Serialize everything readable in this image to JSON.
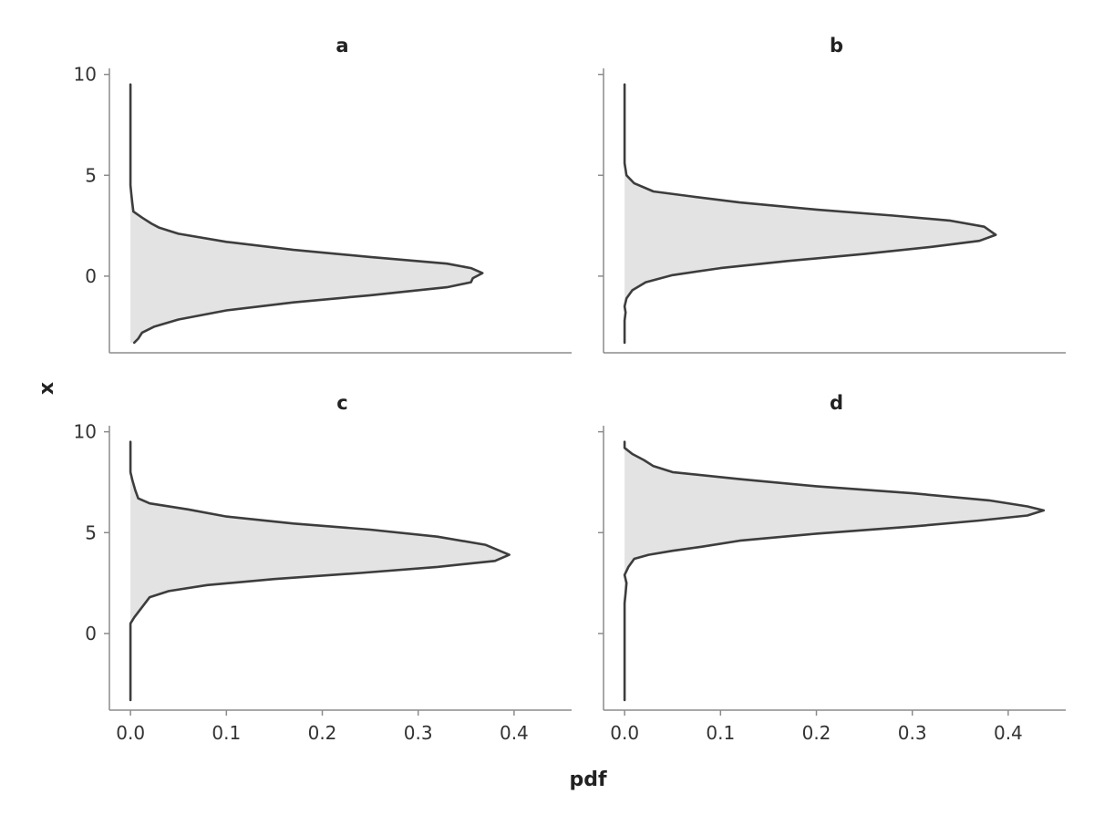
{
  "chart_data": {
    "type": "area",
    "orientation": "horizontal-density",
    "xlabel": "pdf",
    "ylabel": "x",
    "xlim": [
      -0.022,
      0.46
    ],
    "ylim": [
      -3.8,
      10.3
    ],
    "x_ticks": [
      0.0,
      0.1,
      0.2,
      0.3,
      0.4
    ],
    "x_tick_labels": [
      "0.0",
      "0.1",
      "0.2",
      "0.3",
      "0.4"
    ],
    "y_ticks": [
      0,
      5,
      10
    ],
    "y_tick_labels": [
      "0",
      "5",
      "10"
    ],
    "grid": false,
    "fill_color": "#e3e3e3",
    "line_color": "#3d3d3d",
    "panels": [
      {
        "title": "a",
        "points": [
          [
            0.0,
            9.5
          ],
          [
            0.0,
            8.0
          ],
          [
            0.0,
            6.0
          ],
          [
            0.0,
            4.5
          ],
          [
            0.001,
            4.0
          ],
          [
            0.002,
            3.6
          ],
          [
            0.003,
            3.2
          ],
          [
            0.012,
            2.9
          ],
          [
            0.022,
            2.6
          ],
          [
            0.03,
            2.4
          ],
          [
            0.05,
            2.1
          ],
          [
            0.1,
            1.7
          ],
          [
            0.17,
            1.3
          ],
          [
            0.25,
            0.95
          ],
          [
            0.33,
            0.62
          ],
          [
            0.355,
            0.4
          ],
          [
            0.367,
            0.15
          ],
          [
            0.357,
            -0.1
          ],
          [
            0.355,
            -0.3
          ],
          [
            0.33,
            -0.55
          ],
          [
            0.25,
            -0.95
          ],
          [
            0.17,
            -1.3
          ],
          [
            0.1,
            -1.7
          ],
          [
            0.05,
            -2.15
          ],
          [
            0.025,
            -2.5
          ],
          [
            0.012,
            -2.8
          ],
          [
            0.008,
            -3.1
          ],
          [
            0.004,
            -3.3
          ]
        ]
      },
      {
        "title": "b",
        "points": [
          [
            0.0,
            9.5
          ],
          [
            0.0,
            8.0
          ],
          [
            0.0,
            6.5
          ],
          [
            0.0,
            5.6
          ],
          [
            0.002,
            5.0
          ],
          [
            0.01,
            4.6
          ],
          [
            0.03,
            4.2
          ],
          [
            0.07,
            3.95
          ],
          [
            0.12,
            3.65
          ],
          [
            0.2,
            3.3
          ],
          [
            0.28,
            3.0
          ],
          [
            0.34,
            2.75
          ],
          [
            0.375,
            2.45
          ],
          [
            0.387,
            2.05
          ],
          [
            0.37,
            1.75
          ],
          [
            0.32,
            1.45
          ],
          [
            0.25,
            1.1
          ],
          [
            0.17,
            0.75
          ],
          [
            0.1,
            0.4
          ],
          [
            0.05,
            0.05
          ],
          [
            0.022,
            -0.3
          ],
          [
            0.008,
            -0.7
          ],
          [
            0.002,
            -1.1
          ],
          [
            0.0,
            -1.5
          ],
          [
            0.001,
            -1.8
          ],
          [
            0.0,
            -2.2
          ],
          [
            0.0,
            -3.3
          ]
        ]
      },
      {
        "title": "c",
        "points": [
          [
            0.0,
            9.5
          ],
          [
            0.0,
            8.5
          ],
          [
            0.0,
            8.0
          ],
          [
            0.002,
            7.6
          ],
          [
            0.005,
            7.1
          ],
          [
            0.008,
            6.7
          ],
          [
            0.02,
            6.45
          ],
          [
            0.06,
            6.15
          ],
          [
            0.1,
            5.8
          ],
          [
            0.17,
            5.45
          ],
          [
            0.25,
            5.15
          ],
          [
            0.32,
            4.8
          ],
          [
            0.37,
            4.4
          ],
          [
            0.395,
            3.9
          ],
          [
            0.38,
            3.6
          ],
          [
            0.32,
            3.3
          ],
          [
            0.24,
            3.0
          ],
          [
            0.15,
            2.7
          ],
          [
            0.08,
            2.4
          ],
          [
            0.04,
            2.1
          ],
          [
            0.02,
            1.8
          ],
          [
            0.012,
            1.3
          ],
          [
            0.004,
            0.8
          ],
          [
            0.0,
            0.5
          ],
          [
            0.0,
            -0.5
          ],
          [
            0.0,
            -2.0
          ],
          [
            0.0,
            -3.3
          ]
        ]
      },
      {
        "title": "d",
        "points": [
          [
            0.0,
            9.5
          ],
          [
            0.0,
            9.2
          ],
          [
            0.008,
            8.9
          ],
          [
            0.02,
            8.6
          ],
          [
            0.03,
            8.3
          ],
          [
            0.05,
            8.0
          ],
          [
            0.12,
            7.65
          ],
          [
            0.2,
            7.3
          ],
          [
            0.3,
            6.95
          ],
          [
            0.38,
            6.6
          ],
          [
            0.42,
            6.3
          ],
          [
            0.437,
            6.1
          ],
          [
            0.42,
            5.85
          ],
          [
            0.37,
            5.6
          ],
          [
            0.3,
            5.3
          ],
          [
            0.2,
            4.95
          ],
          [
            0.12,
            4.6
          ],
          [
            0.08,
            4.3
          ],
          [
            0.05,
            4.1
          ],
          [
            0.025,
            3.9
          ],
          [
            0.01,
            3.7
          ],
          [
            0.004,
            3.3
          ],
          [
            0.0,
            2.9
          ],
          [
            0.002,
            2.5
          ],
          [
            0.001,
            2.0
          ],
          [
            0.0,
            1.5
          ],
          [
            0.0,
            0.0
          ],
          [
            0.0,
            -3.3
          ]
        ]
      }
    ]
  }
}
